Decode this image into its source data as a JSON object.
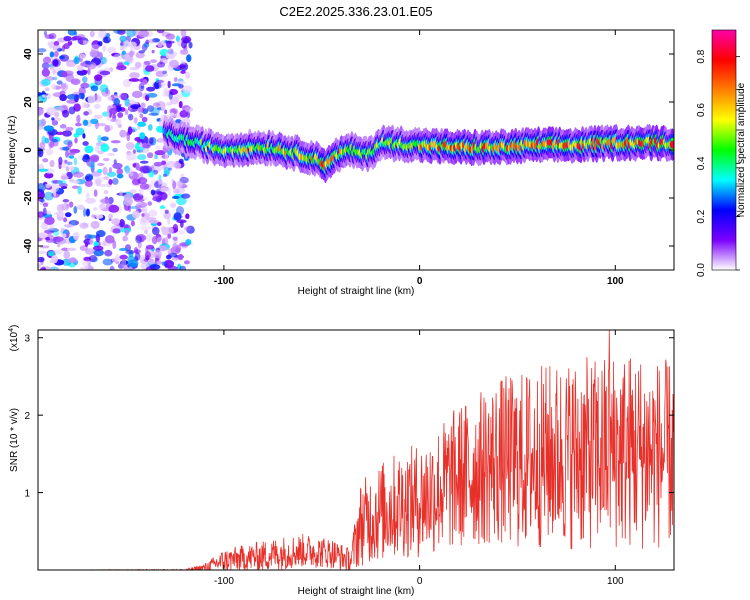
{
  "title": "C2E2.2025.336.23.01.E05",
  "chart_data": [
    {
      "type": "heatmap",
      "name": "spectrogram",
      "xlabel": "Height of straight line (km)",
      "ylabel": "Frequency (Hz)",
      "xlim": [
        -195,
        130
      ],
      "ylim": [
        -50,
        50
      ],
      "xticks": [
        -100,
        0,
        100
      ],
      "yticks": [
        -40,
        -20,
        0,
        20,
        40
      ],
      "colorbar": {
        "label": "Normalized spectral amplitude",
        "range": [
          0.0,
          0.9
        ],
        "ticks": [
          0.0,
          0.2,
          0.4,
          0.6,
          0.8
        ],
        "colors": [
          "#ffffff",
          "#7b00ff",
          "#0000ff",
          "#00ffff",
          "#00ff00",
          "#ffff00",
          "#ff7f00",
          "#ff0000",
          "#ff00aa"
        ]
      },
      "noise_region": {
        "x": [
          -195,
          -117
        ],
        "amplitude": [
          0.02,
          0.35
        ]
      },
      "signal_ridge": {
        "x": [
          -130,
          -115,
          -100,
          -85,
          -75,
          -65,
          -55,
          -48,
          -42,
          -35,
          -28,
          -23,
          -20,
          0,
          20,
          40,
          60,
          80,
          100,
          130
        ],
        "frequency": [
          7,
          3,
          0,
          1,
          1,
          -1,
          -3,
          -6,
          -2,
          0,
          -2,
          0,
          3,
          2,
          1,
          1,
          2,
          2,
          3,
          3
        ],
        "peak_amplitude": [
          0.45,
          0.55,
          0.6,
          0.65,
          0.65,
          0.7,
          0.75,
          0.8,
          0.7,
          0.65,
          0.6,
          0.55,
          0.6,
          0.75,
          0.8,
          0.8,
          0.85,
          0.85,
          0.85,
          0.85
        ]
      }
    },
    {
      "type": "line",
      "name": "snr",
      "xlabel": "Height of straight line (km)",
      "ylabel": "SNR (10 * v/v)",
      "scale_label": "(x10",
      "scale_exp": "4",
      "scale_close": ")",
      "xlim": [
        -195,
        130
      ],
      "ylim": [
        0,
        3.1
      ],
      "xticks": [
        -100,
        0,
        100
      ],
      "yticks": [
        1,
        2,
        3
      ],
      "color": "#e8302a",
      "envelope": {
        "x": [
          -195,
          -120,
          -110,
          -100,
          -80,
          -70,
          -60,
          -45,
          -35,
          -32,
          -30,
          -20,
          -10,
          0,
          10,
          20,
          30,
          40,
          50,
          60,
          70,
          80,
          90,
          100,
          110,
          120,
          130
        ],
        "mean": [
          0.0,
          0.0,
          0.03,
          0.12,
          0.18,
          0.22,
          0.25,
          0.22,
          0.12,
          0.45,
          0.6,
          0.75,
          0.85,
          0.9,
          1.05,
          1.2,
          1.3,
          1.4,
          1.4,
          1.45,
          1.5,
          1.5,
          1.5,
          1.55,
          1.55,
          1.5,
          1.5
        ],
        "spread": [
          0.0,
          0.01,
          0.05,
          0.15,
          0.2,
          0.22,
          0.22,
          0.2,
          0.15,
          0.45,
          0.55,
          0.65,
          0.7,
          0.75,
          0.85,
          0.95,
          1.0,
          1.1,
          1.15,
          1.2,
          1.2,
          1.25,
          1.25,
          1.3,
          1.3,
          1.25,
          1.2
        ]
      },
      "peak": {
        "x": 97,
        "y": 3.1
      }
    }
  ]
}
